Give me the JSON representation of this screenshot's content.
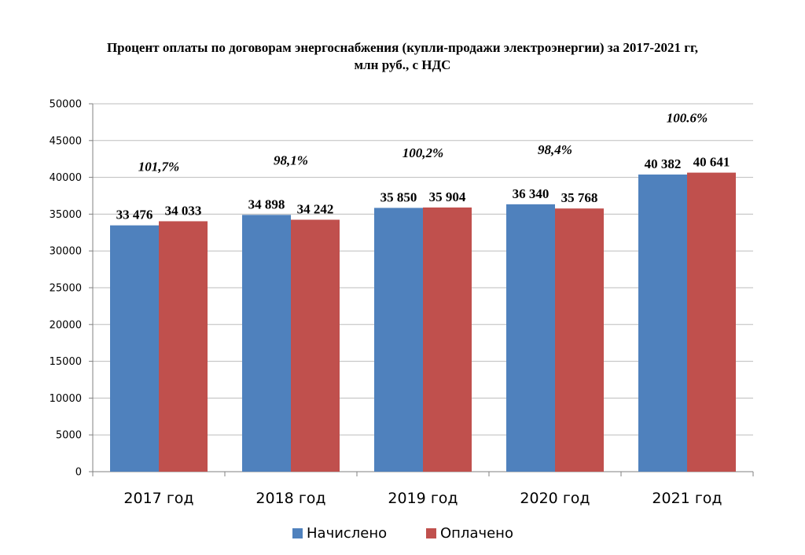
{
  "chart_data": {
    "type": "bar",
    "title_line1": "Процент оплаты по договорам энергоснабжения (купли-продажи электроэнергии) за 2017-2021 гг,",
    "title_line2": "млн руб., с НДС",
    "categories": [
      "2017 год",
      "2018 год",
      "2019 год",
      "2020 год",
      "2021 год"
    ],
    "series": [
      {
        "name": "Начислено",
        "color": "#4f81bd",
        "values": [
          33476,
          34898,
          35850,
          36340,
          40382
        ],
        "labels": [
          "33 476",
          "34 898",
          "35 850",
          "36 340",
          "40 382"
        ]
      },
      {
        "name": "Оплачено",
        "color": "#c0504d",
        "values": [
          34033,
          34242,
          35904,
          35768,
          40641
        ],
        "labels": [
          "34 033",
          "34 242",
          "35 904",
          "35 768",
          "40 641"
        ]
      }
    ],
    "annotations": [
      "101,7%",
      "98,1%",
      "100,2%",
      "98,4%",
      "100.6%"
    ],
    "ylim": [
      0,
      50000
    ],
    "yticks": [
      "0",
      "5000",
      "10000",
      "15000",
      "20000",
      "25000",
      "30000",
      "35000",
      "40000",
      "45000",
      "50000"
    ],
    "grid": true,
    "legend_position": "bottom"
  }
}
